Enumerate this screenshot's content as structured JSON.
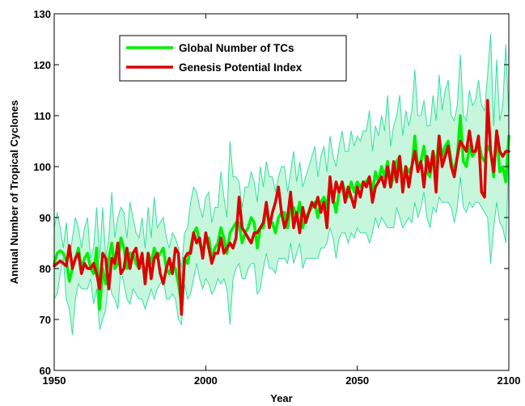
{
  "chart_data": {
    "type": "line",
    "title": "",
    "xlabel": "Year",
    "ylabel": "Annual Number of Tropical Cyclones",
    "xlim": [
      1950,
      2100
    ],
    "ylim": [
      60,
      130
    ],
    "xticks": [
      1950,
      2000,
      2050,
      2100
    ],
    "yticks": [
      60,
      70,
      80,
      90,
      100,
      110,
      120,
      130
    ],
    "grid": false,
    "legend_position": "top-left",
    "x": [
      1950,
      1951,
      1952,
      1953,
      1954,
      1955,
      1956,
      1957,
      1958,
      1959,
      1960,
      1961,
      1962,
      1963,
      1964,
      1965,
      1966,
      1967,
      1968,
      1969,
      1970,
      1971,
      1972,
      1973,
      1974,
      1975,
      1976,
      1977,
      1978,
      1979,
      1980,
      1981,
      1982,
      1983,
      1984,
      1985,
      1986,
      1987,
      1988,
      1989,
      1990,
      1991,
      1992,
      1993,
      1994,
      1995,
      1996,
      1997,
      1998,
      1999,
      2000,
      2001,
      2002,
      2003,
      2004,
      2005,
      2006,
      2007,
      2008,
      2009,
      2010,
      2011,
      2012,
      2013,
      2014,
      2015,
      2016,
      2017,
      2018,
      2019,
      2020,
      2021,
      2022,
      2023,
      2024,
      2025,
      2026,
      2027,
      2028,
      2029,
      2030,
      2031,
      2032,
      2033,
      2034,
      2035,
      2036,
      2037,
      2038,
      2039,
      2040,
      2041,
      2042,
      2043,
      2044,
      2045,
      2046,
      2047,
      2048,
      2049,
      2050,
      2051,
      2052,
      2053,
      2054,
      2055,
      2056,
      2057,
      2058,
      2059,
      2060,
      2061,
      2062,
      2063,
      2064,
      2065,
      2066,
      2067,
      2068,
      2069,
      2070,
      2071,
      2072,
      2073,
      2074,
      2075,
      2076,
      2077,
      2078,
      2079,
      2080,
      2081,
      2082,
      2083,
      2084,
      2085,
      2086,
      2087,
      2088,
      2089,
      2090,
      2091,
      2092,
      2093,
      2094,
      2095,
      2096,
      2097,
      2098,
      2099,
      2100
    ],
    "series": [
      {
        "name": "Global Number of TCs",
        "color": "#00ee00",
        "values": [
          81,
          83,
          83.5,
          83,
          81.5,
          77.5,
          80,
          82,
          84,
          80,
          82,
          83,
          80,
          79,
          84,
          72,
          80,
          77,
          82,
          85,
          80,
          81,
          86,
          84,
          80,
          83,
          83,
          81,
          80,
          82,
          78,
          83,
          81,
          84,
          82,
          83,
          84,
          80,
          79,
          81,
          80,
          77,
          73,
          82,
          81,
          84,
          87,
          88,
          85,
          83,
          86,
          86,
          82,
          84,
          85,
          88,
          86,
          83,
          87,
          88,
          89,
          89,
          85,
          87,
          88,
          90,
          89,
          84,
          88,
          88,
          92,
          89,
          89,
          87,
          90,
          91,
          91,
          88,
          92,
          92,
          90,
          93,
          88,
          90,
          91,
          92,
          93,
          90,
          93,
          94,
          92,
          97,
          94,
          91,
          95,
          97,
          95,
          94,
          97,
          95,
          97,
          96,
          97,
          97,
          98,
          95,
          99,
          97,
          100,
          98,
          101,
          96,
          98,
          101,
          102,
          97,
          100,
          99,
          100,
          106,
          100,
          101,
          104,
          99,
          98,
          103,
          100,
          106,
          102,
          104,
          105,
          101,
          99,
          102,
          110,
          101,
          100,
          104,
          102,
          103,
          105,
          102,
          101,
          104,
          103,
          98,
          107,
          99,
          100,
          97,
          106
        ],
        "upper": [
          88,
          91,
          88,
          84,
          89,
          82,
          86,
          90,
          88,
          84,
          88,
          90,
          82,
          84,
          92,
          82,
          92,
          82,
          86,
          95,
          86,
          90,
          92,
          91,
          86,
          93,
          90,
          87,
          86,
          90,
          84,
          92,
          86,
          94,
          88,
          89,
          90,
          86,
          84,
          87,
          86,
          84,
          80,
          87,
          88,
          93,
          96,
          95,
          92,
          90,
          94,
          95,
          89,
          92,
          92,
          99,
          94,
          90,
          105,
          98,
          98,
          97,
          92,
          96,
          96,
          99,
          97,
          93,
          100,
          96,
          101,
          98,
          98,
          95,
          98,
          100,
          100,
          95,
          99,
          103,
          97,
          101,
          96,
          98,
          100,
          102,
          104,
          98,
          102,
          104,
          99,
          106,
          102,
          100,
          104,
          107,
          103,
          103,
          107,
          104,
          106,
          105,
          107,
          107,
          111,
          103,
          108,
          106,
          110,
          107,
          114,
          104,
          108,
          110,
          114,
          106,
          111,
          108,
          111,
          119,
          110,
          110,
          113,
          108,
          108,
          114,
          109,
          118,
          111,
          115,
          117,
          110,
          109,
          112,
          122,
          110,
          109,
          115,
          112,
          113,
          117,
          112,
          111,
          118,
          126,
          108,
          121,
          109,
          112,
          124,
          110
        ],
        "lower": [
          74,
          75,
          79,
          82,
          74,
          72,
          67,
          74,
          77,
          76,
          76,
          76,
          78,
          73,
          76,
          68,
          70,
          72,
          78,
          75,
          74,
          72,
          80,
          77,
          74,
          73,
          76,
          75,
          74,
          74,
          72,
          74,
          76,
          74,
          76,
          77,
          78,
          74,
          74,
          75,
          74,
          70,
          69,
          77,
          74,
          75,
          78,
          81,
          78,
          76,
          78,
          77,
          75,
          76,
          78,
          77,
          78,
          76,
          69,
          78,
          80,
          81,
          78,
          78,
          80,
          81,
          81,
          75,
          76,
          80,
          83,
          80,
          80,
          79,
          82,
          82,
          82,
          81,
          85,
          81,
          83,
          85,
          80,
          82,
          82,
          82,
          82,
          82,
          84,
          84,
          85,
          88,
          86,
          82,
          86,
          87,
          87,
          85,
          87,
          86,
          88,
          87,
          87,
          87,
          85,
          87,
          90,
          88,
          90,
          89,
          88,
          88,
          88,
          92,
          90,
          88,
          89,
          90,
          89,
          93,
          90,
          92,
          95,
          90,
          88,
          92,
          91,
          94,
          93,
          93,
          93,
          92,
          89,
          92,
          98,
          92,
          91,
          93,
          92,
          93,
          93,
          92,
          91,
          90,
          81,
          88,
          93,
          89,
          88,
          85,
          102
        ]
      },
      {
        "name": "Genesis Potential Index",
        "color": "#dd0000",
        "values": [
          80.5,
          81,
          81.5,
          81,
          80.5,
          84.5,
          80,
          82,
          83,
          79,
          81,
          80,
          80,
          81,
          79,
          76,
          83,
          82,
          76,
          82,
          81,
          85,
          79,
          80,
          84,
          80,
          83,
          84,
          80,
          83,
          77,
          83,
          78,
          82,
          83,
          79,
          77,
          80,
          82,
          79,
          84,
          83,
          71,
          82,
          83,
          83,
          87,
          85,
          86,
          82,
          87,
          84,
          81,
          83,
          83,
          86,
          83,
          84,
          85,
          84,
          86,
          94,
          88,
          87,
          86,
          85,
          87,
          87,
          88,
          89,
          93,
          88,
          91,
          93,
          96,
          91,
          88,
          90,
          95,
          88,
          91,
          87,
          92,
          89,
          91,
          93,
          92,
          94,
          91,
          93,
          88,
          98,
          93,
          97,
          95,
          97,
          93,
          96,
          94,
          92,
          96,
          94,
          97,
          96,
          98,
          93,
          96,
          97,
          98,
          96,
          100,
          96,
          101,
          97,
          102,
          95,
          100,
          96,
          100,
          103,
          99,
          101,
          96,
          102,
          99,
          103,
          95,
          106,
          100,
          102,
          104,
          100,
          98,
          102,
          105,
          104,
          103,
          107,
          103,
          103,
          106,
          95,
          94,
          113,
          103,
          99,
          107,
          103,
          102,
          103,
          103
        ]
      }
    ]
  }
}
